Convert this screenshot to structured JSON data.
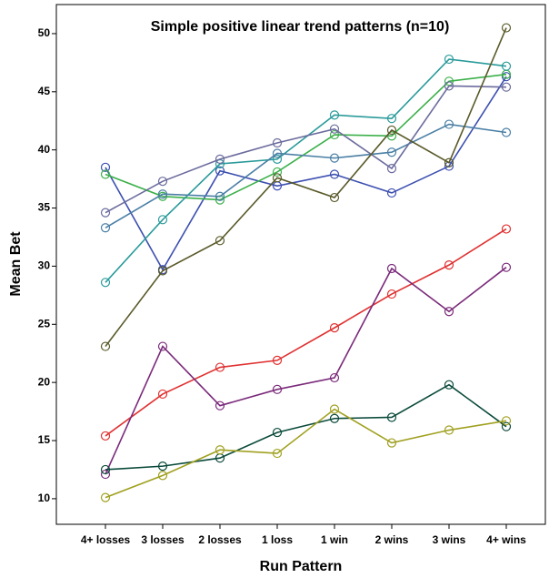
{
  "chart_data": {
    "type": "line",
    "title": "Simple positive linear trend patterns (n=10)",
    "x_label": "Run Pattern",
    "y_label": "Mean Bet",
    "categories": [
      "4+ losses",
      "3 losses",
      "2 losses",
      "1 loss",
      "1 win",
      "2 wins",
      "3 wins",
      "4+ wins"
    ],
    "ylim": [
      7.8,
      52.5
    ],
    "yticks": [
      10,
      15,
      20,
      25,
      30,
      35,
      40,
      45,
      50
    ],
    "series": [
      {
        "color": "#3c4fb0",
        "values": [
          38.5,
          29.7,
          38.2,
          36.9,
          37.9,
          36.3,
          38.6,
          46.3
        ]
      },
      {
        "color": "#3cb04a",
        "values": [
          37.9,
          36.0,
          35.7,
          38.1,
          41.3,
          41.2,
          45.9,
          46.5
        ]
      },
      {
        "color": "#2a9a9a",
        "values": [
          28.6,
          34.0,
          38.8,
          39.2,
          43.0,
          42.7,
          47.8,
          47.2
        ]
      },
      {
        "color": "#4a7fa5",
        "values": [
          33.3,
          36.2,
          36.0,
          39.7,
          39.3,
          39.8,
          42.2,
          41.5
        ]
      },
      {
        "color": "#6b6b9e",
        "values": [
          34.6,
          37.3,
          39.2,
          40.6,
          41.8,
          38.4,
          45.5,
          45.4
        ]
      },
      {
        "color": "#5a5a2a",
        "values": [
          23.1,
          29.6,
          32.2,
          37.6,
          35.9,
          41.7,
          38.9,
          50.5
        ]
      },
      {
        "color": "#e03030",
        "values": [
          15.4,
          19.0,
          21.3,
          21.9,
          24.7,
          27.6,
          30.1,
          33.2
        ]
      },
      {
        "color": "#7a2a7a",
        "values": [
          12.1,
          23.1,
          18.0,
          19.4,
          20.4,
          29.8,
          26.1,
          29.9
        ]
      },
      {
        "color": "#0a4a3a",
        "values": [
          12.5,
          12.8,
          13.5,
          15.7,
          16.9,
          17.0,
          19.8,
          16.2
        ]
      },
      {
        "color": "#a0a020",
        "values": [
          10.1,
          12.0,
          14.2,
          13.9,
          17.7,
          14.8,
          15.9,
          16.7
        ]
      }
    ]
  }
}
